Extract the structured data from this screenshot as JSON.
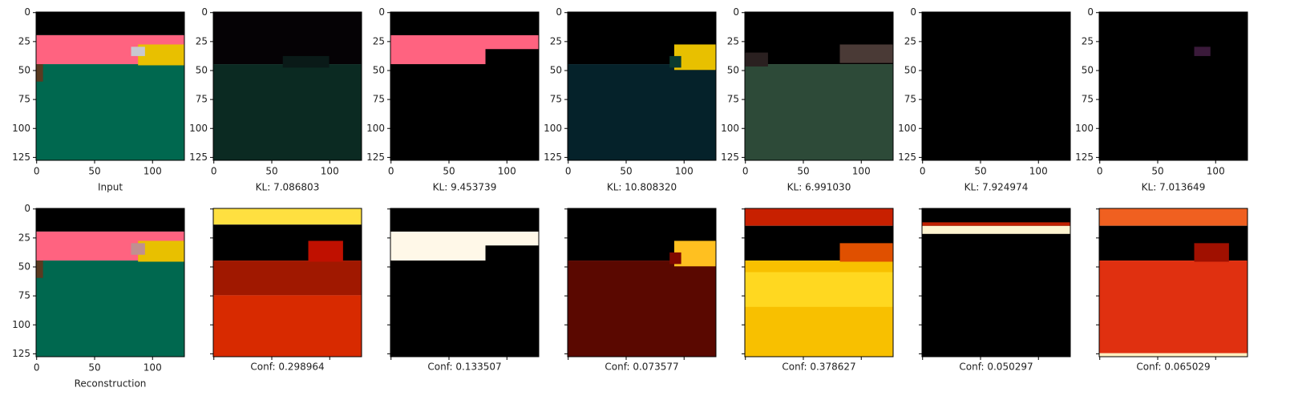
{
  "figure": {
    "xlim": [
      -0.5,
      127.5
    ],
    "ylim": [
      127.5,
      -0.5
    ],
    "xticks": [
      0,
      50,
      100
    ],
    "yticks": [
      0,
      25,
      50,
      75,
      100,
      125
    ],
    "rows": [
      {
        "panels": [
          {
            "label": "Input"
          },
          {
            "label": "KL: 7.086803"
          },
          {
            "label": "KL: 9.453739"
          },
          {
            "label": "KL: 10.808320"
          },
          {
            "label": "KL: 6.991030"
          },
          {
            "label": "KL: 7.924974"
          },
          {
            "label": "KL: 7.013649"
          }
        ]
      },
      {
        "panels": [
          {
            "label": "Reconstruction"
          },
          {
            "label": "Conf: 0.298964"
          },
          {
            "label": "Conf: 0.133507"
          },
          {
            "label": "Conf: 0.073577"
          },
          {
            "label": "Conf: 0.378627"
          },
          {
            "label": "Conf: 0.050297"
          },
          {
            "label": "Conf: 0.065029"
          }
        ]
      }
    ]
  }
}
